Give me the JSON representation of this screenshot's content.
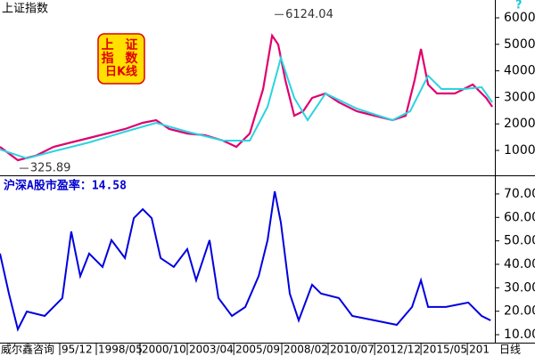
{
  "chart_data": [
    {
      "type": "line",
      "title": "上证指数",
      "legend_box": [
        "上 证",
        "指 数",
        "日K线"
      ],
      "marker": "?",
      "x": [
        1992.71,
        1993.67,
        1994.63,
        1995.59,
        1996.54,
        1997.5,
        1998.46,
        1999.42,
        2000.38,
        2001.1,
        2001.81,
        2002.77,
        2003.73,
        2004.69,
        2005.41,
        2006.13,
        2006.85,
        2007.33,
        2007.66,
        2008.04,
        2008.52,
        2009.0,
        2009.48,
        2010.2,
        2010.92,
        2011.88,
        2012.84,
        2013.8,
        2014.51,
        2014.99,
        2015.33,
        2015.71,
        2016.19,
        2017.15,
        2018.11,
        2018.83,
        2019.16
      ],
      "series": [
        {
          "color": "#e0006e",
          "values": [
            1134,
            631,
            799,
            1134,
            1302,
            1470,
            1638,
            1805,
            2040,
            2141,
            1805,
            1638,
            1570,
            1369,
            1134,
            1638,
            3315,
            5329,
            4993,
            3651,
            2309,
            2477,
            2980,
            3148,
            2812,
            2477,
            2309,
            2141,
            2309,
            3651,
            4826,
            3483,
            3148,
            3148,
            3483,
            2980,
            2644
          ]
        },
        {
          "color": "#2ad4e0",
          "x": [
            1992.71,
            1994.15,
            1995.59,
            1997.5,
            1999.42,
            2001.1,
            2002.77,
            2004.69,
            2006.13,
            2007.09,
            2007.8,
            2008.52,
            2009.24,
            2010.2,
            2011.88,
            2013.8,
            2014.75,
            2015.71,
            2016.43,
            2017.63,
            2018.59,
            2019.16
          ],
          "values": [
            1034,
            698,
            966,
            1302,
            1705,
            2040,
            1705,
            1369,
            1369,
            2644,
            4490,
            2980,
            2141,
            3148,
            2577,
            2141,
            2477,
            3819,
            3315,
            3315,
            3383,
            2812
          ]
        }
      ],
      "annotations": [
        {
          "text": "6124.04",
          "x": 2007.47,
          "value": 6124.04
        },
        {
          "text": "325.89",
          "x": 1993.76,
          "value": 325.89
        }
      ],
      "xlim": [
        1992.71,
        2019.3
      ],
      "ylim": [
        60,
        6671
      ],
      "yticks": [
        1000,
        2000,
        3000,
        4000,
        5000,
        6000
      ]
    },
    {
      "type": "line",
      "title": "沪深A股市盈率：14.58",
      "x": [
        1992.71,
        1993.19,
        1993.67,
        1994.15,
        1995.11,
        1996.06,
        1996.54,
        1997.02,
        1997.5,
        1998.22,
        1998.7,
        1999.42,
        1999.9,
        2000.38,
        2000.86,
        2001.34,
        2002.05,
        2002.77,
        2003.25,
        2003.97,
        2004.45,
        2005.17,
        2005.89,
        2006.61,
        2007.09,
        2007.47,
        2007.8,
        2008.28,
        2008.76,
        2009.48,
        2009.96,
        2010.92,
        2011.64,
        2012.84,
        2014.03,
        2014.85,
        2015.33,
        2015.71,
        2016.67,
        2017.87,
        2018.59,
        2019.07
      ],
      "series": [
        {
          "color": "#0000e0",
          "values": [
            44.6,
            27.5,
            12.3,
            19.9,
            18,
            25.6,
            54,
            35,
            44.6,
            38.9,
            50.3,
            42.7,
            59.7,
            63.5,
            59.7,
            42.7,
            38.9,
            46.5,
            33.2,
            50.3,
            25.6,
            18,
            21.8,
            35,
            50.3,
            71.1,
            57.8,
            27.5,
            16.1,
            31.3,
            27.5,
            25.6,
            18,
            16.1,
            14.2,
            21.8,
            33.2,
            21.8,
            21.8,
            23.7,
            18,
            16.1
          ]
        }
      ],
      "xlim": [
        1992.71,
        2019.3
      ],
      "ylim": [
        6.6,
        76.8
      ],
      "yticks": [
        {
          "value": 10,
          "label": "10.00"
        },
        {
          "value": 20,
          "label": "20.00"
        },
        {
          "value": 30,
          "label": "30.00"
        },
        {
          "value": 40,
          "label": "40.00"
        },
        {
          "value": 50,
          "label": "50.00"
        },
        {
          "value": 60,
          "label": "60.00"
        },
        {
          "value": 70,
          "label": "70.00"
        }
      ],
      "xticks": [
        {
          "value": 1995.92,
          "label": "95/12"
        },
        {
          "value": 1997.885,
          "label": "1998/05"
        },
        {
          "value": 2000.23,
          "label": "2000/10"
        },
        {
          "value": 2002.77,
          "label": "2003/04"
        },
        {
          "value": 2005.27,
          "label": "2005/09"
        },
        {
          "value": 2007.85,
          "label": "2008/02"
        },
        {
          "value": 2010.34,
          "label": "2010/07"
        },
        {
          "value": 2012.84,
          "label": "2012/12"
        },
        {
          "value": 2015.33,
          "label": "2015/05"
        },
        {
          "value": 2017.82,
          "label": "201"
        }
      ],
      "source": "威尔鑫咨询",
      "x_unit": "日线"
    }
  ]
}
